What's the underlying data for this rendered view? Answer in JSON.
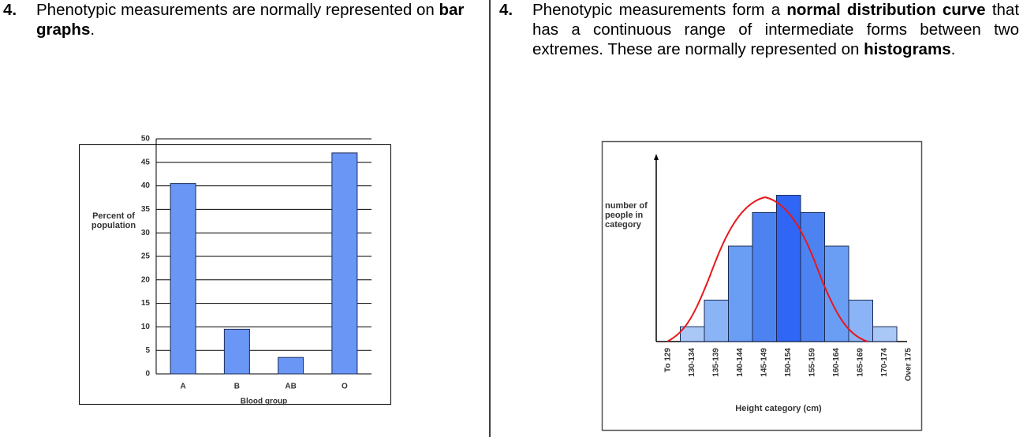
{
  "columns": [
    {
      "number": "4.",
      "segments": [
        {
          "text": "Phenotypic measurements are normally represented on ",
          "bold": false
        },
        {
          "text": "bar graphs",
          "bold": true
        },
        {
          "text": ".",
          "bold": false
        }
      ]
    },
    {
      "number": "4.",
      "segments": [
        {
          "text": "Phenotypic measurements form a ",
          "bold": false
        },
        {
          "text": "normal distribution curve",
          "bold": true
        },
        {
          "text": " that has a continuous range of intermediate forms between two extremes. These are normally represented on ",
          "bold": false
        },
        {
          "text": "histograms",
          "bold": true
        },
        {
          "text": ".",
          "bold": false
        }
      ]
    }
  ],
  "chart_data": [
    {
      "type": "bar",
      "categories": [
        "A",
        "B",
        "AB",
        "O"
      ],
      "values": [
        40.5,
        9.5,
        3.5,
        47
      ],
      "color": "#6a96f5",
      "ylim": [
        0,
        50
      ],
      "yticks": [
        0,
        5,
        10,
        15,
        20,
        25,
        30,
        35,
        40,
        45,
        50
      ],
      "grid": true,
      "xlabel": "Blood group",
      "ylabel": "Percent of population"
    },
    {
      "type": "histogram",
      "categories": [
        "To 129",
        "130-134",
        "135-139",
        "140-144",
        "145-149",
        "150-154",
        "155-159",
        "160-164",
        "165-169",
        "170-174",
        "Over 175"
      ],
      "values": [
        0,
        19,
        53,
        122,
        165,
        187,
        165,
        122,
        53,
        19,
        0
      ],
      "colors": [
        "#a9c8f5",
        "#a9c8f5",
        "#8ab4f5",
        "#6a9ef5",
        "#4d83f0",
        "#2f66f5",
        "#4d83f0",
        "#6a9ef5",
        "#8ab4f5",
        "#a9c8f5",
        "#a9c8f5"
      ],
      "ylim": [
        0,
        240
      ],
      "xlabel": "Height category (cm)",
      "ylabel": "number of people in category",
      "curve_color": "#e8171b"
    }
  ]
}
